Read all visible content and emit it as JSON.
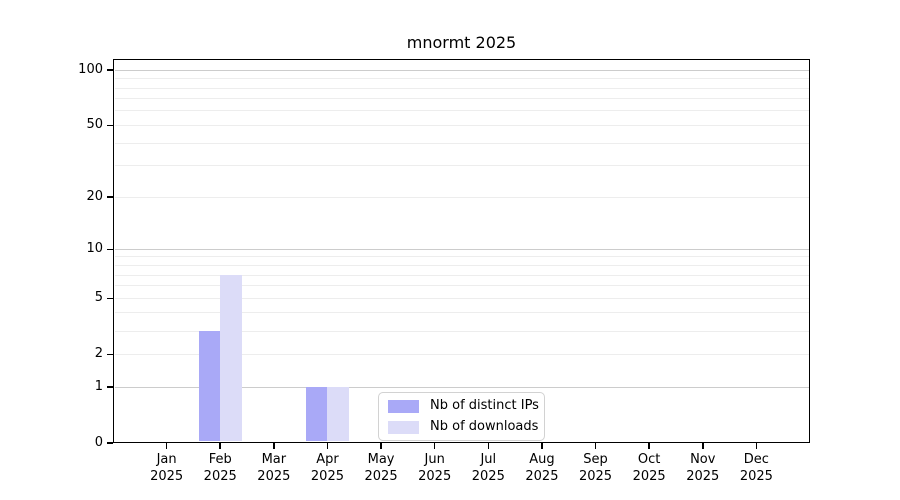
{
  "title": "mnormt 2025",
  "chart_data": {
    "type": "bar",
    "title": "mnormt 2025",
    "scale": "log1p",
    "categories": [
      "Jan",
      "Feb",
      "Mar",
      "Apr",
      "May",
      "Jun",
      "Jul",
      "Aug",
      "Sep",
      "Oct",
      "Nov",
      "Dec"
    ],
    "year_label": "2025",
    "series": [
      {
        "name": "Nb of distinct IPs",
        "color": "#a9a9f7",
        "values": [
          0,
          3,
          0,
          1,
          0,
          0,
          0,
          0,
          0,
          0,
          0,
          0
        ]
      },
      {
        "name": "Nb of downloads",
        "color": "#dcdcf8",
        "values": [
          0,
          7,
          0,
          1,
          0,
          0,
          0,
          0,
          0,
          0,
          0,
          0
        ]
      }
    ],
    "xlabel": "",
    "ylabel": "",
    "y_tick_values": [
      0,
      1,
      2,
      5,
      10,
      20,
      50,
      100
    ],
    "y_tick_labels": [
      "0",
      "1",
      "2",
      "5",
      "10",
      "20",
      "50",
      "100"
    ],
    "major_gridlines": [
      1,
      10,
      100
    ],
    "minor_gridlines": [
      2,
      3,
      4,
      5,
      6,
      7,
      8,
      9,
      20,
      30,
      40,
      50,
      60,
      70,
      80,
      90
    ],
    "ylim_max": 115,
    "grid": true,
    "legend_position": "lower center",
    "axis_color": "#000000",
    "major_grid_color": "#cccccc",
    "minor_grid_color": "#ededed"
  }
}
